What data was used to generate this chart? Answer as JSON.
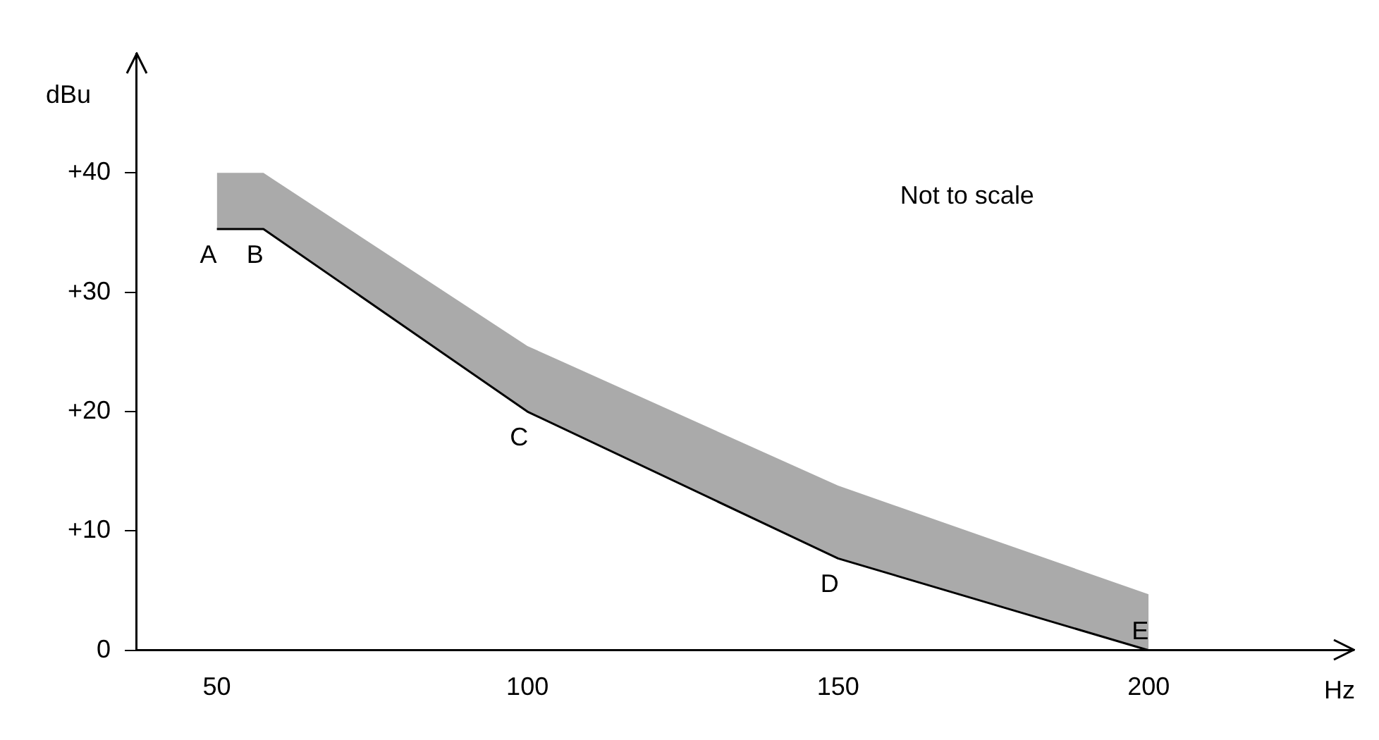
{
  "chart_data": {
    "type": "line",
    "xlabel": "Hz",
    "ylabel": "dBu",
    "xlim": [
      37,
      233
    ],
    "ylim": [
      0,
      50
    ],
    "xticks": [
      50,
      100,
      150,
      200
    ],
    "yticks": [
      0,
      {
        "value": 10,
        "label": "+10"
      },
      {
        "value": 20,
        "label": "+20"
      },
      {
        "value": 30,
        "label": "+30"
      },
      {
        "value": 40,
        "label": "+40"
      }
    ],
    "series": [
      {
        "color": "#000000",
        "x": [
          50,
          57.5,
          100,
          150,
          200
        ],
        "values": [
          35.3,
          35.3,
          20,
          7.7,
          0
        ],
        "lower": [
          35.3,
          35.3,
          20,
          7.7,
          0
        ],
        "upper": [
          40,
          40,
          25.5,
          13.8,
          4.7
        ]
      }
    ],
    "annotations": [
      "Not to scale",
      {
        "text": "A",
        "x": 50,
        "y": 35.3
      },
      {
        "text": "B",
        "x": 57.5,
        "y": 35.3
      },
      {
        "text": "C",
        "x": 100,
        "y": 20
      },
      {
        "text": "D",
        "x": 150,
        "y": 7.7
      },
      {
        "text": "E",
        "x": 200,
        "y": 0
      }
    ],
    "grid": false,
    "legend": false,
    "marker": "none",
    "line_style": "solid"
  }
}
